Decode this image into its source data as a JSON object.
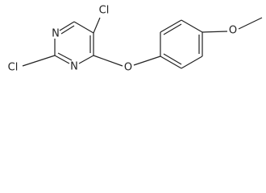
{
  "nodes": [
    {
      "label": "Cl"
    },
    {
      "label": "N"
    },
    {
      "label": "N"
    },
    {
      "label": "Cl"
    },
    {
      "label": "O"
    },
    {
      "label": "O"
    }
  ]
}
